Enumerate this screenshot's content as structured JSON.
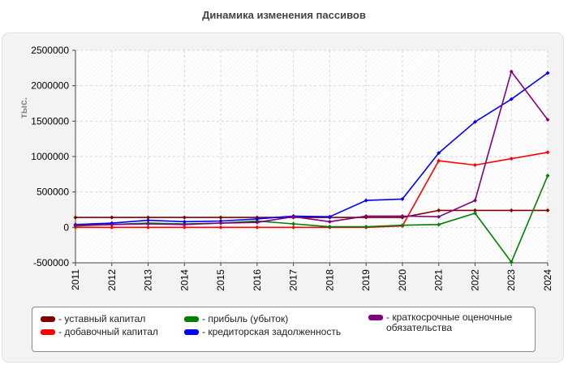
{
  "chart_data": {
    "type": "line",
    "title": "Динамика изменения пассивов",
    "ylabel": "тыс.",
    "xlabel": "",
    "x": [
      "2011",
      "2012",
      "2013",
      "2014",
      "2015",
      "2016",
      "2017",
      "2018",
      "2019",
      "2020",
      "2021",
      "2022",
      "2023",
      "2024"
    ],
    "ylim": [
      -500000,
      2500000
    ],
    "yticks": [
      -500000,
      0,
      500000,
      1000000,
      1500000,
      2000000,
      2500000
    ],
    "ytick_labels": [
      "-500000",
      "0",
      "500000",
      "1000000",
      "1500000",
      "2000000",
      "2500000"
    ],
    "grid": true,
    "legend_position": "bottom",
    "series": [
      {
        "name": "- уставный капитал",
        "color": "#800000",
        "values": [
          140000,
          140000,
          140000,
          140000,
          140000,
          140000,
          140000,
          140000,
          140000,
          140000,
          240000,
          240000,
          240000,
          240000
        ]
      },
      {
        "name": "- добавочный капитал",
        "color": "#ff0000",
        "values": [
          0,
          0,
          0,
          0,
          0,
          0,
          0,
          0,
          0,
          20000,
          940000,
          880000,
          970000,
          1060000
        ]
      },
      {
        "name": "- прибыль (убыток)",
        "color": "#008000",
        "values": [
          20000,
          40000,
          60000,
          50000,
          60000,
          90000,
          50000,
          10000,
          10000,
          30000,
          40000,
          200000,
          -490000,
          730000
        ]
      },
      {
        "name": "- кредиторская задолженность",
        "color": "#0000ff",
        "values": [
          40000,
          60000,
          100000,
          80000,
          90000,
          120000,
          160000,
          150000,
          380000,
          400000,
          1050000,
          1490000,
          1810000,
          2180000
        ]
      },
      {
        "name": "- краткосрочные оценочные обязательства",
        "color": "#800080",
        "values": [
          30000,
          40000,
          50000,
          40000,
          60000,
          70000,
          150000,
          80000,
          160000,
          160000,
          150000,
          380000,
          2200000,
          1520000
        ]
      }
    ]
  }
}
